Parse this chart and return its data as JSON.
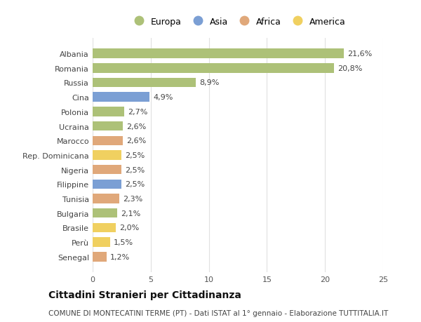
{
  "countries": [
    "Albania",
    "Romania",
    "Russia",
    "Cina",
    "Polonia",
    "Ucraina",
    "Marocco",
    "Rep. Dominicana",
    "Nigeria",
    "Filippine",
    "Tunisia",
    "Bulgaria",
    "Brasile",
    "Perù",
    "Senegal"
  ],
  "values": [
    21.6,
    20.8,
    8.9,
    4.9,
    2.7,
    2.6,
    2.6,
    2.5,
    2.5,
    2.5,
    2.3,
    2.1,
    2.0,
    1.5,
    1.2
  ],
  "labels": [
    "21,6%",
    "20,8%",
    "8,9%",
    "4,9%",
    "2,7%",
    "2,6%",
    "2,6%",
    "2,5%",
    "2,5%",
    "2,5%",
    "2,3%",
    "2,1%",
    "2,0%",
    "1,5%",
    "1,2%"
  ],
  "regions": [
    "Europa",
    "Europa",
    "Europa",
    "Asia",
    "Europa",
    "Europa",
    "Africa",
    "America",
    "Africa",
    "Asia",
    "Africa",
    "Europa",
    "America",
    "America",
    "Africa"
  ],
  "region_colors": {
    "Europa": "#adc178",
    "Asia": "#7b9fd4",
    "Africa": "#e0a87a",
    "America": "#f0d060"
  },
  "legend_order": [
    "Europa",
    "Asia",
    "Africa",
    "America"
  ],
  "legend_colors": [
    "#adc178",
    "#7b9fd4",
    "#e0a87a",
    "#f0d060"
  ],
  "xlim": [
    0,
    25
  ],
  "xticks": [
    0,
    5,
    10,
    15,
    20,
    25
  ],
  "bg_color": "#ffffff",
  "grid_color": "#e0e0e0",
  "title": "Cittadini Stranieri per Cittadinanza",
  "subtitle": "COMUNE DI MONTECATINI TERME (PT) - Dati ISTAT al 1° gennaio - Elaborazione TUTTITALIA.IT",
  "bar_height": 0.65,
  "label_fontsize": 8,
  "tick_fontsize": 8,
  "title_fontsize": 10,
  "subtitle_fontsize": 7.5
}
